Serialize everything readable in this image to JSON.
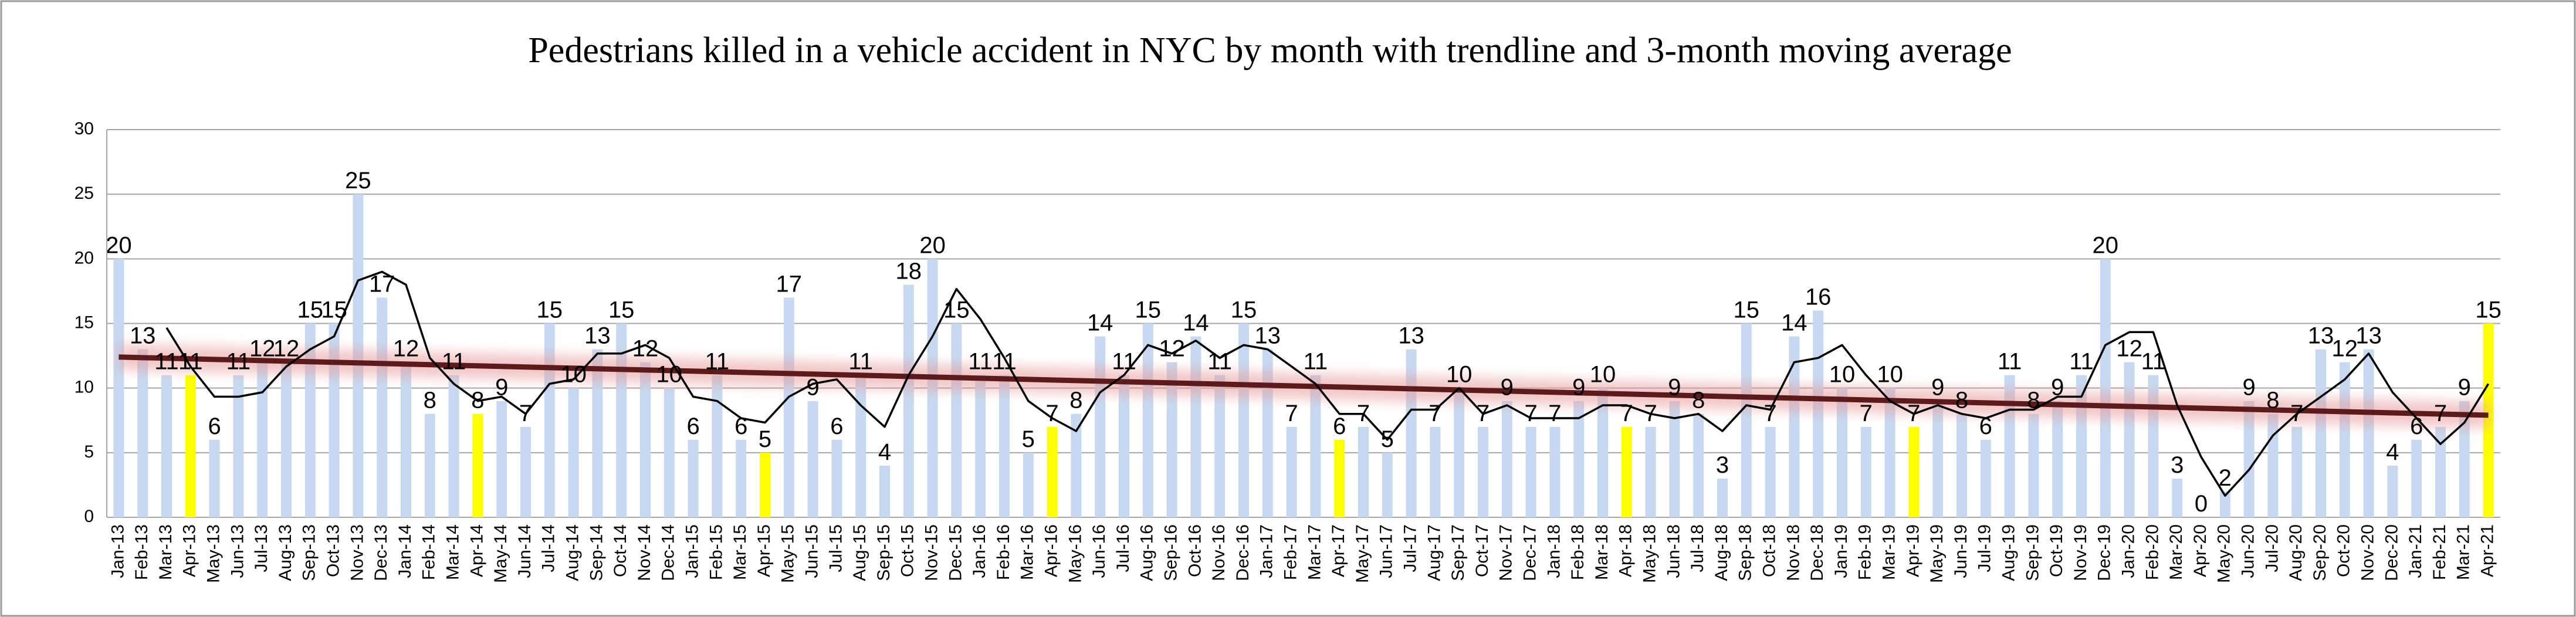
{
  "chart_data": {
    "type": "bar",
    "title": "Pedestrians killed in a vehicle accident  in NYC  by month with trendline and 3-month moving average",
    "categories": [
      "Jan-13",
      "Feb-13",
      "Mar-13",
      "Apr-13",
      "May-13",
      "Jun-13",
      "Jul-13",
      "Aug-13",
      "Sep-13",
      "Oct-13",
      "Nov-13",
      "Dec-13",
      "Jan-14",
      "Feb-14",
      "Mar-14",
      "Apr-14",
      "May-14",
      "Jun-14",
      "Jul-14",
      "Aug-14",
      "Sep-14",
      "Oct-14",
      "Nov-14",
      "Dec-14",
      "Jan-15",
      "Feb-15",
      "Mar-15",
      "Apr-15",
      "May-15",
      "Jun-15",
      "Jul-15",
      "Aug-15",
      "Sep-15",
      "Oct-15",
      "Nov-15",
      "Dec-15",
      "Jan-16",
      "Feb-16",
      "Mar-16",
      "Apr-16",
      "May-16",
      "Jun-16",
      "Jul-16",
      "Aug-16",
      "Sep-16",
      "Oct-16",
      "Nov-16",
      "Dec-16",
      "Jan-17",
      "Feb-17",
      "Mar-17",
      "Apr-17",
      "May-17",
      "Jun-17",
      "Jul-17",
      "Aug-17",
      "Sep-17",
      "Oct-17",
      "Nov-17",
      "Dec-17",
      "Jan-18",
      "Feb-18",
      "Mar-18",
      "Apr-18",
      "May-18",
      "Jun-18",
      "Jul-18",
      "Aug-18",
      "Sep-18",
      "Oct-18",
      "Nov-18",
      "Dec-18",
      "Jan-19",
      "Feb-19",
      "Mar-19",
      "Apr-19",
      "May-19",
      "Jun-19",
      "Jul-19",
      "Aug-19",
      "Sep-19",
      "Oct-19",
      "Nov-19",
      "Dec-19",
      "Jan-20",
      "Feb-20",
      "Mar-20",
      "Apr-20",
      "May-20",
      "Jun-20",
      "Jul-20",
      "Aug-20",
      "Sep-20",
      "Oct-20",
      "Nov-20",
      "Dec-20",
      "Jan-21",
      "Feb-21",
      "Mar-21",
      "Apr-21"
    ],
    "values": [
      20,
      13,
      11,
      11,
      6,
      11,
      12,
      12,
      15,
      15,
      25,
      17,
      12,
      8,
      11,
      8,
      9,
      7,
      15,
      10,
      13,
      15,
      12,
      10,
      6,
      11,
      6,
      5,
      17,
      9,
      6,
      11,
      4,
      18,
      20,
      15,
      11,
      11,
      5,
      7,
      8,
      14,
      11,
      15,
      12,
      14,
      11,
      15,
      13,
      7,
      11,
      6,
      7,
      5,
      13,
      7,
      10,
      7,
      9,
      7,
      7,
      9,
      10,
      7,
      7,
      9,
      8,
      3,
      15,
      7,
      14,
      16,
      10,
      7,
      10,
      7,
      9,
      8,
      6,
      11,
      8,
      9,
      11,
      20,
      12,
      11,
      3,
      0,
      2,
      9,
      8,
      7,
      13,
      12,
      13,
      4,
      6,
      7,
      9,
      15
    ],
    "color": "#c6d9f0",
    "highlight_color": "#ffff00",
    "highlight_indices": [
      3,
      15,
      27,
      39,
      51,
      63,
      75,
      87,
      99
    ],
    "moving_average": [
      null,
      null,
      14.67,
      11.67,
      9.33,
      9.33,
      9.67,
      11.67,
      13,
      14,
      18.33,
      19,
      18,
      12.33,
      10.33,
      9,
      9.33,
      8,
      10.33,
      10.67,
      12.67,
      12.67,
      13.33,
      12.33,
      9.33,
      9,
      7.67,
      7.33,
      9.33,
      10.33,
      10.67,
      8.67,
      7,
      11,
      14,
      17.67,
      15.33,
      12.33,
      9,
      7.67,
      6.67,
      9.67,
      11,
      13.33,
      12.67,
      13.67,
      12.33,
      13.33,
      13,
      11.67,
      10.33,
      8,
      8,
      6,
      8.33,
      8.33,
      10,
      8,
      8.67,
      7.67,
      7.67,
      7.67,
      8.67,
      8.67,
      8,
      7.67,
      8,
      6.67,
      8.67,
      8.33,
      12,
      12.33,
      13.33,
      11,
      9,
      8,
      8.67,
      8,
      7.67,
      8.33,
      8.33,
      9.33,
      9.33,
      13.33,
      14.33,
      14.33,
      8.67,
      4.67,
      1.67,
      3.67,
      6.33,
      8,
      9.33,
      10.67,
      12.67,
      9.67,
      7.67,
      5.67,
      7.33,
      10.33
    ],
    "moving_average_color": "#000000",
    "trendline": [
      12.4,
      7.9
    ],
    "trendline_color": "#5c1a1a",
    "ylim": [
      0,
      30
    ],
    "yticks": [
      0,
      5,
      10,
      15,
      20,
      25,
      30
    ],
    "grid": true
  }
}
